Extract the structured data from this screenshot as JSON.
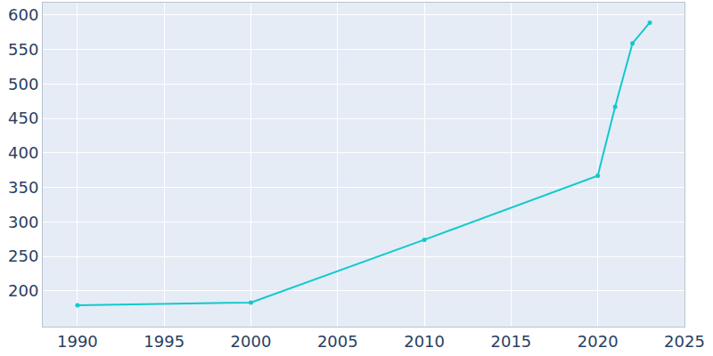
{
  "chart_data": {
    "type": "line",
    "x": [
      1990,
      2000,
      2010,
      2020,
      2021,
      2022,
      2023
    ],
    "values": [
      179,
      183,
      274,
      367,
      467,
      559,
      589
    ],
    "color": "#12c9cc",
    "marker": "circle",
    "xlim": [
      1988,
      2025
    ],
    "xticks": [
      1990,
      1995,
      2000,
      2005,
      2010,
      2015,
      2020,
      2025
    ],
    "ylim": [
      148,
      618
    ],
    "yticks": [
      200,
      250,
      300,
      350,
      400,
      450,
      500,
      550,
      600
    ],
    "grid": true
  }
}
